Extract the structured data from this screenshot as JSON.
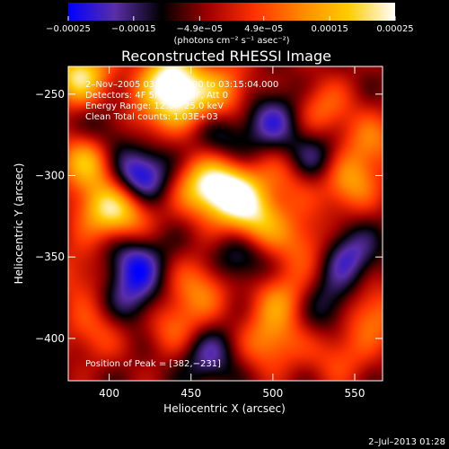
{
  "chart_data": {
    "type": "heatmap",
    "title": "Reconstructed RHESSI Image",
    "xlabel": "Heliocentric X (arcsec)",
    "ylabel": "Heliocentric Y (arcsec)",
    "xlim": [
      375,
      567
    ],
    "ylim": [
      -426,
      -233
    ],
    "x_ticks": [
      400,
      450,
      500,
      550
    ],
    "y_ticks": [
      -250,
      -300,
      -350,
      -400
    ],
    "x_tick_labels": [
      "400",
      "450",
      "500",
      "550"
    ],
    "y_tick_labels": [
      "−250",
      "−300",
      "−350",
      "−400"
    ],
    "colorbar": {
      "range": [
        -0.00025,
        0.00025
      ],
      "ticks": [
        -0.00025,
        -0.00015,
        -4.9e-05,
        4.9e-05,
        0.00015,
        0.00025
      ],
      "tick_labels": [
        "−0.00025",
        "−0.00015",
        "−4.9e−05",
        "4.9e−05",
        "0.00015",
        "0.00025"
      ],
      "units_label": "(photons cm⁻² s⁻¹ asec⁻²)",
      "colors": [
        "#0000ff",
        "#5a2ea8",
        "#000000",
        "#a00000",
        "#ff3300",
        "#ff8800",
        "#ffcc00",
        "#ffffff"
      ]
    },
    "annotations": [
      "2–Nov–2005 03:13:52.000 to 03:15:04.000",
      "Detectors: 4F 5F 6F 7F 8F, Att 0",
      "Energy Range: 12.0 – 25.0 keV",
      "Clean    Total counts: 1.03E+03"
    ],
    "peak_label": "Position of Peak = [382,−231]",
    "peak": [
      382,
      -231
    ],
    "heat_sources": [
      {
        "x": 475,
        "y": -310,
        "intensity": 1.0
      },
      {
        "x": 458,
        "y": -306,
        "intensity": 0.85
      },
      {
        "x": 490,
        "y": -328,
        "intensity": 0.8
      },
      {
        "x": 442,
        "y": -252,
        "intensity": 0.9
      },
      {
        "x": 436,
        "y": -238,
        "intensity": 0.8
      },
      {
        "x": 388,
        "y": -290,
        "intensity": 0.9
      },
      {
        "x": 382,
        "y": -238,
        "intensity": 1.0
      },
      {
        "x": 470,
        "y": -248,
        "intensity": 0.6
      },
      {
        "x": 410,
        "y": -322,
        "intensity": 0.7
      },
      {
        "x": 395,
        "y": -320,
        "intensity": 0.6
      },
      {
        "x": 545,
        "y": -304,
        "intensity": 0.7
      },
      {
        "x": 560,
        "y": -280,
        "intensity": 0.5
      },
      {
        "x": 530,
        "y": -260,
        "intensity": 0.5
      },
      {
        "x": 520,
        "y": -342,
        "intensity": 0.5
      },
      {
        "x": 456,
        "y": -368,
        "intensity": 0.55
      },
      {
        "x": 505,
        "y": -375,
        "intensity": 0.55
      },
      {
        "x": 440,
        "y": -392,
        "intensity": 0.5
      },
      {
        "x": 498,
        "y": -402,
        "intensity": 0.6
      },
      {
        "x": 560,
        "y": -385,
        "intensity": 0.6
      },
      {
        "x": 390,
        "y": -395,
        "intensity": 0.4
      },
      {
        "x": 540,
        "y": -410,
        "intensity": 0.4
      },
      {
        "x": 415,
        "y": -270,
        "intensity": 0.45
      },
      {
        "x": 510,
        "y": -300,
        "intensity": 0.45
      },
      {
        "x": 380,
        "y": -360,
        "intensity": 0.35
      },
      {
        "x": 418,
        "y": -300,
        "intensity": -0.9
      },
      {
        "x": 400,
        "y": -275,
        "intensity": -0.6
      },
      {
        "x": 500,
        "y": -265,
        "intensity": -0.55
      },
      {
        "x": 525,
        "y": -290,
        "intensity": -0.6
      },
      {
        "x": 415,
        "y": -352,
        "intensity": -0.6
      },
      {
        "x": 480,
        "y": -350,
        "intensity": -0.5
      },
      {
        "x": 545,
        "y": -348,
        "intensity": -0.6
      },
      {
        "x": 460,
        "y": -410,
        "intensity": -0.5
      },
      {
        "x": 415,
        "y": -375,
        "intensity": -0.45
      },
      {
        "x": 535,
        "y": -380,
        "intensity": -0.45
      },
      {
        "x": 470,
        "y": -278,
        "intensity": -0.35
      }
    ]
  },
  "footer": {
    "timestamp": "2–Jul–2013 01:28"
  }
}
